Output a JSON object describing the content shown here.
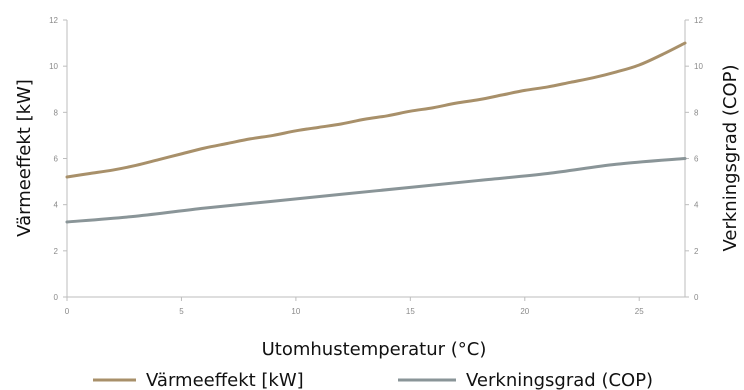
{
  "chart_data": {
    "type": "line",
    "xlabel": "Utomhustemperatur (°C)",
    "ylabel": "Värmeeffekt [kW]",
    "y2label": "Verkningsgrad (COP)",
    "xlim": [
      0,
      27
    ],
    "ylim": [
      0,
      12
    ],
    "y2lim": [
      0,
      12
    ],
    "xticks": [
      0,
      5,
      10,
      15,
      20,
      25
    ],
    "yticks": [
      0,
      2,
      4,
      6,
      8,
      10,
      12
    ],
    "y2ticks": [
      0,
      2,
      4,
      6,
      8,
      10,
      12
    ],
    "grid": false,
    "legend_position": "bottom",
    "series": [
      {
        "name": "Värmeeffekt [kW]",
        "color": "#a8906a",
        "axis": "left",
        "x": [
          0,
          1,
          2,
          3,
          4,
          5,
          6,
          7,
          8,
          9,
          10,
          11,
          12,
          13,
          14,
          15,
          16,
          17,
          18,
          19,
          20,
          21,
          22,
          23,
          24,
          25,
          26,
          27
        ],
        "y": [
          5.2,
          5.35,
          5.5,
          5.7,
          5.95,
          6.2,
          6.45,
          6.65,
          6.85,
          7.0,
          7.2,
          7.35,
          7.5,
          7.7,
          7.85,
          8.05,
          8.2,
          8.4,
          8.55,
          8.75,
          8.95,
          9.1,
          9.3,
          9.5,
          9.75,
          10.05,
          10.5,
          11.0
        ]
      },
      {
        "name": "Verkningsgrad (COP)",
        "color": "#8a9598",
        "axis": "right",
        "x": [
          0,
          3,
          6,
          9,
          12,
          15,
          18,
          21,
          24,
          27
        ],
        "y": [
          3.25,
          3.5,
          3.85,
          4.15,
          4.45,
          4.75,
          5.05,
          5.35,
          5.75,
          6.0
        ]
      }
    ]
  }
}
